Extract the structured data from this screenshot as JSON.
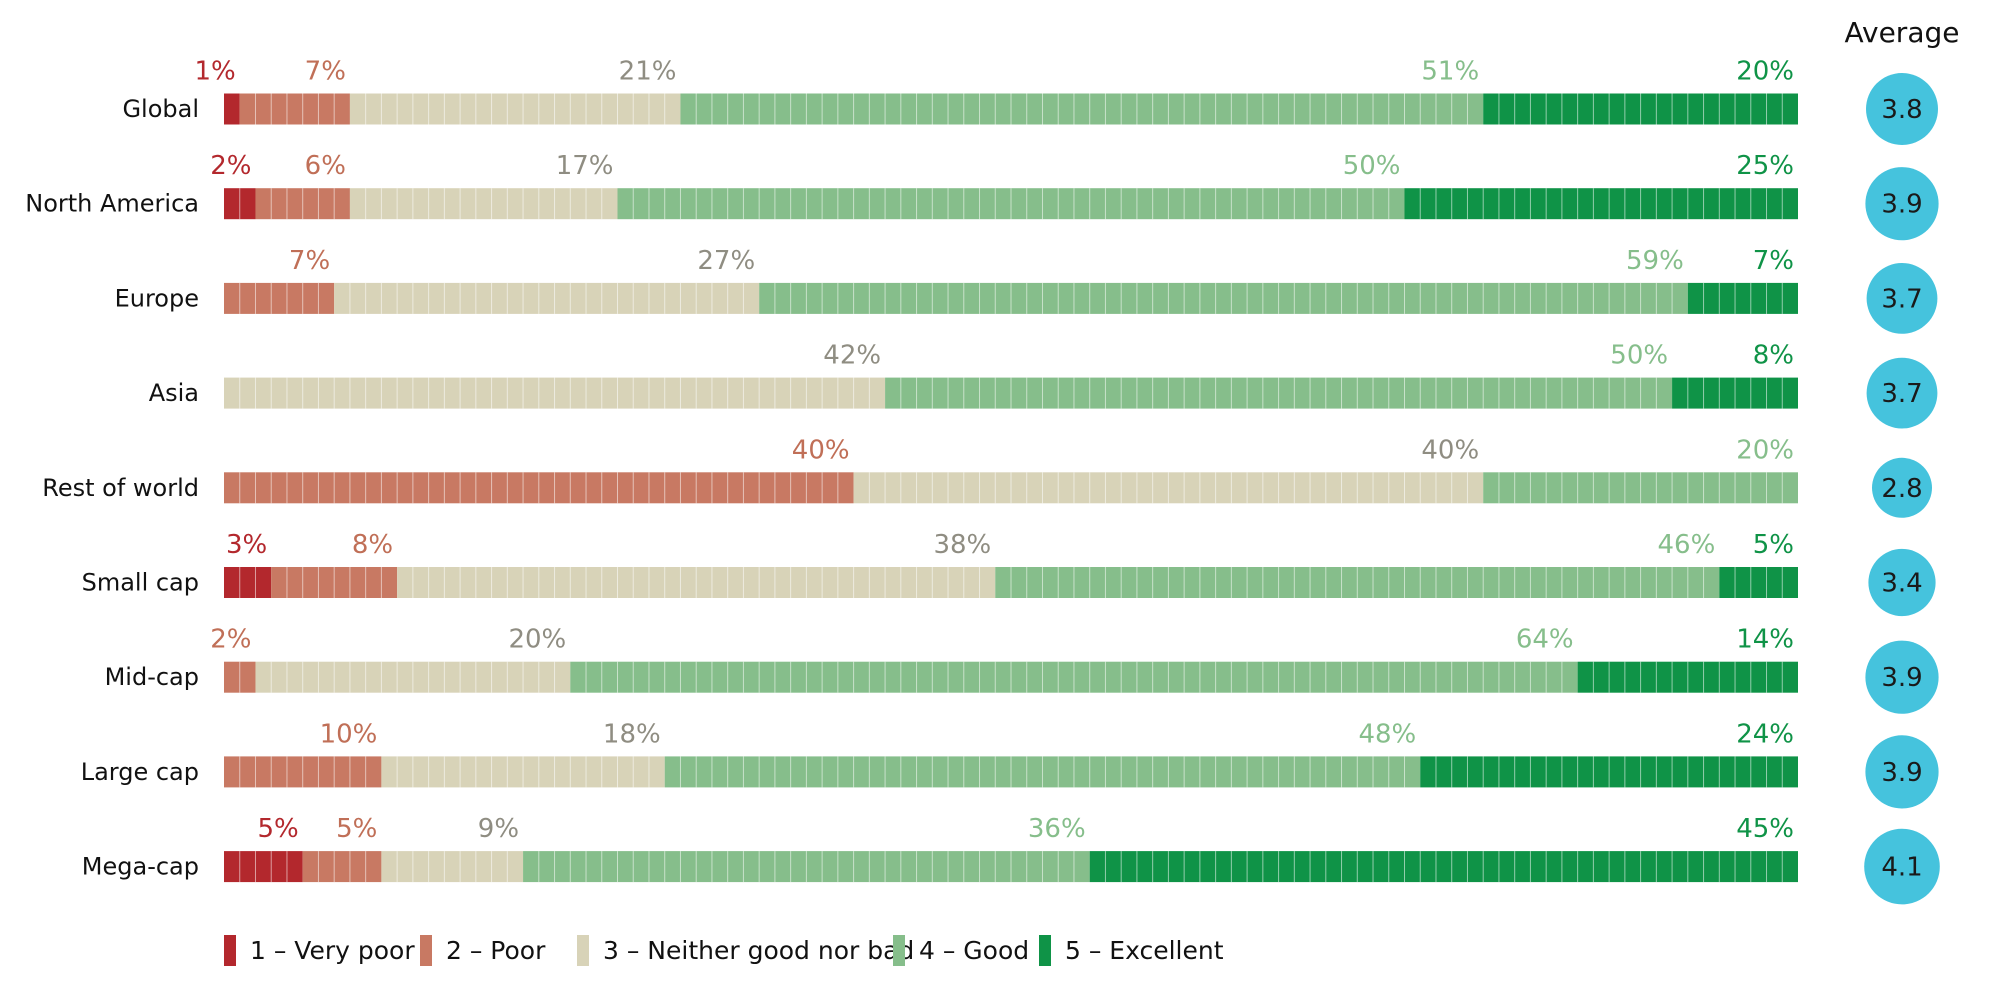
{
  "chart_data": {
    "type": "bar",
    "orientation": "horizontal",
    "stacked": true,
    "categories": [
      "Global",
      "North America",
      "Europe",
      "Asia",
      "Rest of world",
      "Small cap",
      "Mid-cap",
      "Large cap",
      "Mega-cap"
    ],
    "series": [
      {
        "name": "1 – Very poor",
        "color": "#B3282D",
        "values": [
          1,
          2,
          0,
          0,
          0,
          3,
          0,
          0,
          5
        ],
        "labels": [
          "1%",
          "2%",
          "",
          "",
          "",
          "3%",
          "",
          "",
          "5%"
        ]
      },
      {
        "name": "2 – Poor",
        "color": "#C87963",
        "values": [
          7,
          6,
          7,
          0,
          40,
          8,
          2,
          10,
          5
        ],
        "labels": [
          "7%",
          "6%",
          "7%",
          "",
          "40%",
          "8%",
          "2%",
          "10%",
          "5%"
        ]
      },
      {
        "name": "3 – Neither good nor bad",
        "color": "#D8D3B8",
        "values": [
          21,
          17,
          27,
          42,
          40,
          38,
          20,
          18,
          9
        ],
        "labels": [
          "21%",
          "17%",
          "27%",
          "42%",
          "40%",
          "38%",
          "20%",
          "18%",
          "9%"
        ]
      },
      {
        "name": "4 – Good",
        "color": "#86BE8B",
        "values": [
          51,
          50,
          59,
          50,
          20,
          46,
          64,
          48,
          36
        ],
        "labels": [
          "51%",
          "50%",
          "59%",
          "50%",
          "20%",
          "46%",
          "64%",
          "48%",
          "36%"
        ]
      },
      {
        "name": "5 – Excellent",
        "color": "#0F9347",
        "values": [
          20,
          25,
          7,
          8,
          0,
          5,
          14,
          24,
          45
        ],
        "labels": [
          "20%",
          "25%",
          "7%",
          "8%",
          "",
          "5%",
          "14%",
          "24%",
          "45%"
        ]
      }
    ],
    "label_colors": [
      "#B3282D",
      "#C06F57",
      "#8F8D82",
      "#86BE8B",
      "#0F9347"
    ],
    "xlim": [
      0,
      100
    ],
    "average": {
      "title": "Average",
      "values": [
        "3.8",
        "3.9",
        "3.7",
        "3.7",
        "2.8",
        "3.4",
        "3.9",
        "3.9",
        "4.1"
      ],
      "color": "#45C3DD"
    },
    "legend_position": "bottom-left",
    "grid": false
  }
}
